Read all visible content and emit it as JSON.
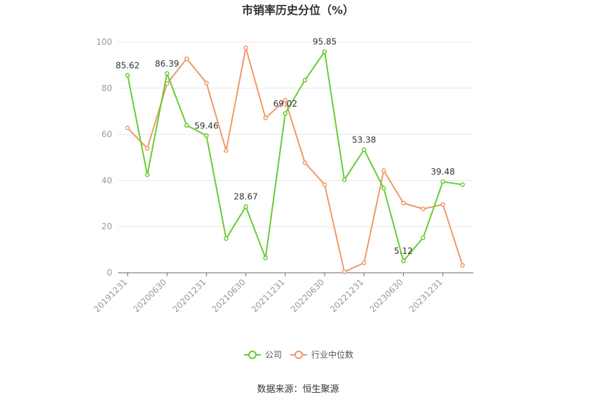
{
  "chart_data": {
    "type": "line",
    "title": "市销率历史分位（%）",
    "ylim": [
      0,
      100
    ],
    "yticks": [
      0,
      20,
      40,
      60,
      80,
      100
    ],
    "x_tick_labels": [
      "20191231",
      "20200630",
      "20201231",
      "20210630",
      "20211231",
      "20220630",
      "20221231",
      "20230630",
      "20231231"
    ],
    "x_tick_indices": [
      0,
      2,
      4,
      6,
      8,
      10,
      12,
      14,
      16
    ],
    "series": [
      {
        "name": "公司",
        "color": "#66cc33",
        "values": [
          85.62,
          42.5,
          86.39,
          63.9,
          59.46,
          14.8,
          28.67,
          6.4,
          69.02,
          83.5,
          95.85,
          40.3,
          53.38,
          36.6,
          5.12,
          15.2,
          39.48,
          38.2
        ],
        "labeled_indices": [
          0,
          2,
          4,
          6,
          8,
          10,
          12,
          14,
          16
        ]
      },
      {
        "name": "行业中位数",
        "color": "#ee9966",
        "values": [
          62.8,
          53.9,
          82.0,
          92.8,
          82.3,
          53.0,
          97.5,
          67.1,
          74.8,
          47.7,
          38.2,
          0.4,
          4.3,
          44.3,
          30.2,
          27.7,
          29.6,
          3.2
        ]
      }
    ],
    "grid": true,
    "legend_position": "bottom-center"
  },
  "source": "数据来源：恒生聚源"
}
